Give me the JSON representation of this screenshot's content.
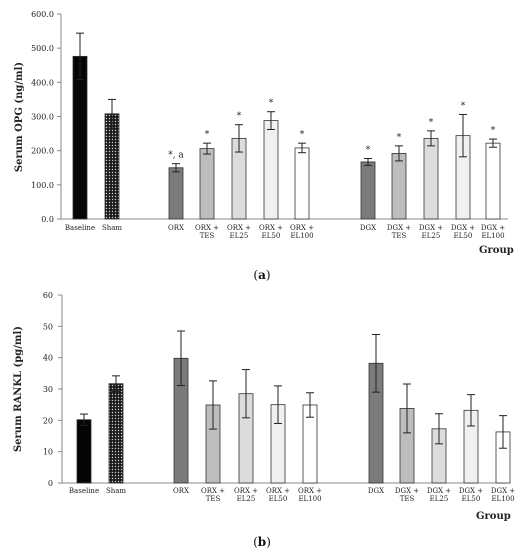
{
  "chart_data": [
    {
      "type": "bar",
      "panel_label": "(a)",
      "ylabel": "Serum OPG (ng/ml)",
      "xlabel": "Group",
      "ylim": [
        0,
        600
      ],
      "yticks": [
        "0.0",
        "100.0",
        "200.0",
        "300.0",
        "400.0",
        "500.0",
        "600.0"
      ],
      "grid": false,
      "categories": [
        [
          "Baseline"
        ],
        [
          "Sham"
        ],
        [
          "ORX"
        ],
        [
          "ORX +",
          "TES"
        ],
        [
          "ORX +",
          "EL25"
        ],
        [
          "ORX +",
          "EL50"
        ],
        [
          "ORX +",
          "EL100"
        ],
        [
          "DGX"
        ],
        [
          "DGX +",
          "TES"
        ],
        [
          "DGX +",
          "EL25"
        ],
        [
          "DGX +",
          "EL50"
        ],
        [
          "DGX +",
          "EL100"
        ]
      ],
      "values": [
        476,
        308,
        150,
        206,
        236,
        288,
        208,
        167,
        192,
        236,
        244,
        222
      ],
      "errors": [
        68,
        42,
        12,
        16,
        40,
        26,
        14,
        10,
        22,
        22,
        62,
        12
      ],
      "annotations": [
        "",
        "",
        "*, a",
        "*",
        "*",
        "*",
        "*",
        "*",
        "*",
        "*",
        "*",
        "*"
      ],
      "bar_styles": [
        "black",
        "dots",
        "dark",
        "mid",
        "light",
        "lighter",
        "white",
        "dark",
        "mid",
        "light",
        "lighter",
        "white"
      ]
    },
    {
      "type": "bar",
      "panel_label": "(b)",
      "ylabel": "Serum RANKL (pg/ml)",
      "xlabel": "Group",
      "ylim": [
        0,
        60
      ],
      "yticks": [
        "0",
        "10",
        "20",
        "30",
        "40",
        "50",
        "60"
      ],
      "grid": false,
      "categories": [
        [
          "Baseline"
        ],
        [
          "Sham"
        ],
        [
          "ORX"
        ],
        [
          "ORX +",
          "TES"
        ],
        [
          "ORX +",
          "EL25"
        ],
        [
          "ORX +",
          "EL50"
        ],
        [
          "ORX +",
          "EL100"
        ],
        [
          "DGX"
        ],
        [
          "DGX +",
          "TES"
        ],
        [
          "DGX +",
          "EL25"
        ],
        [
          "DGX +",
          "EL50"
        ],
        [
          "DGX +",
          "EL100"
        ]
      ],
      "values": [
        20.2,
        31.7,
        39.8,
        24.9,
        28.5,
        25.0,
        24.9,
        38.2,
        23.8,
        17.3,
        23.2,
        16.3
      ],
      "errors": [
        1.8,
        2.5,
        8.7,
        7.7,
        7.7,
        6.0,
        3.9,
        9.2,
        7.8,
        4.8,
        5.0,
        5.2
      ],
      "annotations": [
        "",
        "",
        "",
        "",
        "",
        "",
        "",
        "",
        "",
        "",
        "",
        ""
      ],
      "bar_styles": [
        "black",
        "dots",
        "dark",
        "mid",
        "light",
        "lighter",
        "white",
        "dark",
        "mid",
        "light",
        "lighter",
        "white"
      ]
    }
  ],
  "colors": {
    "black": "#050505",
    "dark": "#7b7b7b",
    "mid": "#bdbdbd",
    "light": "#dcdcdc",
    "lighter": "#f0f0f0",
    "white": "#ffffff",
    "dots_bg": "#1a1a1a",
    "dots_fg": "#cfcfcf",
    "axis": "#888888",
    "outline": "#333333"
  }
}
